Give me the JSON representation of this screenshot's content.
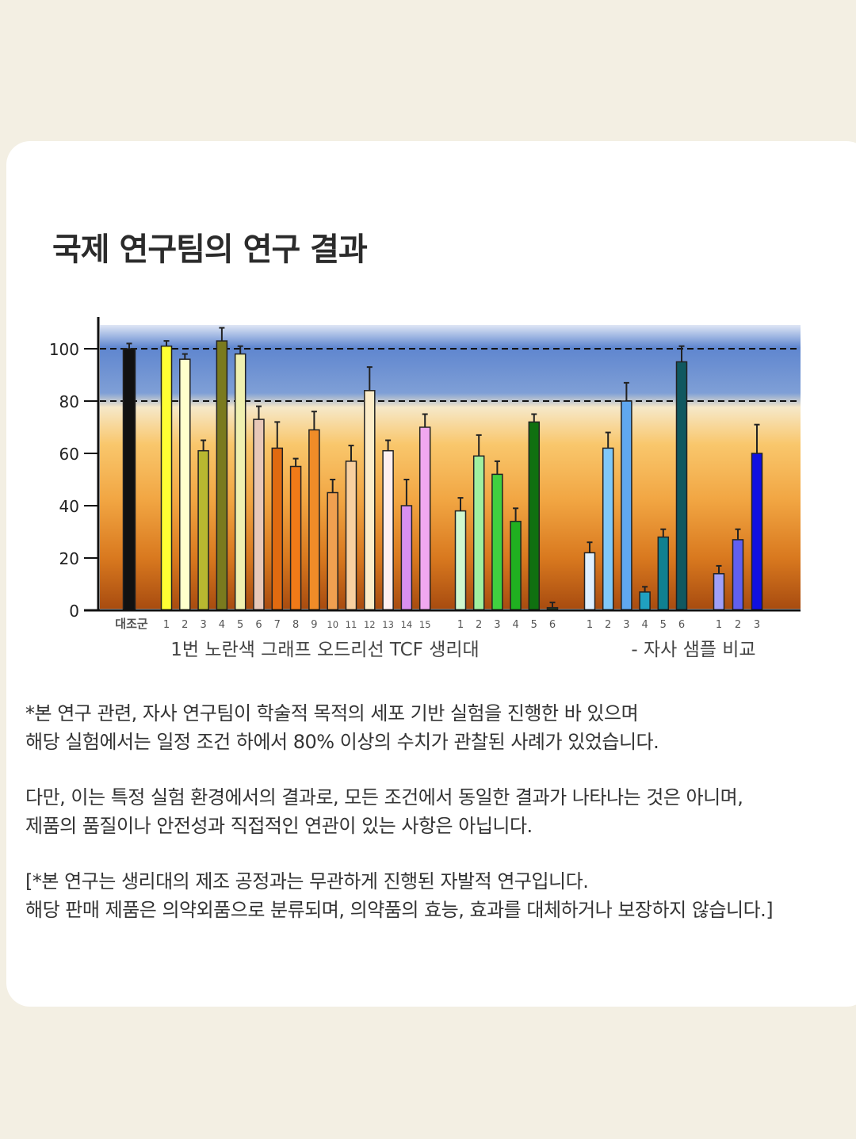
{
  "heading": "국제 연구팀의 연구 결과",
  "chart_data": {
    "type": "bar",
    "ylim": [
      0,
      105
    ],
    "yticks": [
      0,
      20,
      40,
      60,
      80,
      100
    ],
    "reference_lines": [
      80,
      100
    ],
    "groups": [
      {
        "label": "",
        "bars": [
          {
            "x": "대조군",
            "value": 100,
            "err": 2,
            "color": "#111111"
          }
        ]
      },
      {
        "label": "1번 노란색 그래프 오드리선 TCF 생리대",
        "bars": [
          {
            "x": "1",
            "value": 101,
            "err": 2,
            "color": "#ffff33"
          },
          {
            "x": "2",
            "value": 96,
            "err": 2,
            "color": "#ffffcc"
          },
          {
            "x": "3",
            "value": 61,
            "err": 4,
            "color": "#b8b830"
          },
          {
            "x": "4",
            "value": 103,
            "err": 5,
            "color": "#7a7a1e"
          },
          {
            "x": "5",
            "value": 98,
            "err": 3,
            "color": "#f0f0b0"
          },
          {
            "x": "6",
            "value": 73,
            "err": 5,
            "color": "#e8c8b8"
          },
          {
            "x": "7",
            "value": 62,
            "err": 10,
            "color": "#e06a10"
          },
          {
            "x": "8",
            "value": 55,
            "err": 3,
            "color": "#f07a18"
          },
          {
            "x": "9",
            "value": 69,
            "err": 7,
            "color": "#f08c28"
          },
          {
            "x": "10",
            "value": 45,
            "err": 5,
            "color": "#f0a050"
          },
          {
            "x": "11",
            "value": 57,
            "err": 6,
            "color": "#f8d0a0"
          },
          {
            "x": "12",
            "value": 84,
            "err": 9,
            "color": "#fcecc8"
          },
          {
            "x": "13",
            "value": 61,
            "err": 4,
            "color": "#fff0f0"
          },
          {
            "x": "14",
            "value": 40,
            "err": 10,
            "color": "#d890f0"
          },
          {
            "x": "15",
            "value": 70,
            "err": 5,
            "color": "#f0a8f0"
          }
        ]
      },
      {
        "label": "",
        "bars": [
          {
            "x": "1",
            "value": 38,
            "err": 5,
            "color": "#d0f8d0"
          },
          {
            "x": "2",
            "value": 59,
            "err": 8,
            "color": "#a0f0a0"
          },
          {
            "x": "3",
            "value": 52,
            "err": 5,
            "color": "#40d040"
          },
          {
            "x": "4",
            "value": 34,
            "err": 5,
            "color": "#20b020"
          },
          {
            "x": "5",
            "value": 72,
            "err": 3,
            "color": "#107010"
          },
          {
            "x": "6",
            "value": 1,
            "err": 2,
            "color": "#204020"
          }
        ]
      },
      {
        "label": "- 자사 샘플 비교",
        "bars": [
          {
            "x": "1",
            "value": 22,
            "err": 4,
            "color": "#e0f0ff"
          },
          {
            "x": "2",
            "value": 62,
            "err": 6,
            "color": "#80c8f8"
          },
          {
            "x": "3",
            "value": 80,
            "err": 7,
            "color": "#60a8f0"
          },
          {
            "x": "4",
            "value": 7,
            "err": 2,
            "color": "#20a0c0"
          },
          {
            "x": "5",
            "value": 28,
            "err": 3,
            "color": "#108090"
          },
          {
            "x": "6",
            "value": 95,
            "err": 6,
            "color": "#105860"
          }
        ]
      },
      {
        "label": "",
        "bars": [
          {
            "x": "1",
            "value": 14,
            "err": 3,
            "color": "#a0a0f8"
          },
          {
            "x": "2",
            "value": 27,
            "err": 4,
            "color": "#6060f0"
          },
          {
            "x": "3",
            "value": 60,
            "err": 11,
            "color": "#1010e0"
          }
        ]
      }
    ]
  },
  "notes": [
    [
      "*본 연구 관련, 자사 연구팀이 학술적 목적의 세포 기반 실험을 진행한 바 있으며",
      "해당 실험에서는 일정 조건 하에서 80% 이상의 수치가 관찰된 사례가 있었습니다."
    ],
    [
      "다만, 이는 특정 실험 환경에서의 결과로, 모든 조건에서 동일한 결과가 나타나는 것은 아니며,",
      "제품의 품질이나 안전성과 직접적인 연관이 있는 사항은 아닙니다."
    ],
    [
      "[*본 연구는 생리대의 제조 공정과는 무관하게 진행된 자발적 연구입니다.",
      "해당 판매 제품은 의약외품으로 분류되며, 의약품의 효능, 효과를 대체하거나 보장하지 않습니다.]"
    ]
  ]
}
